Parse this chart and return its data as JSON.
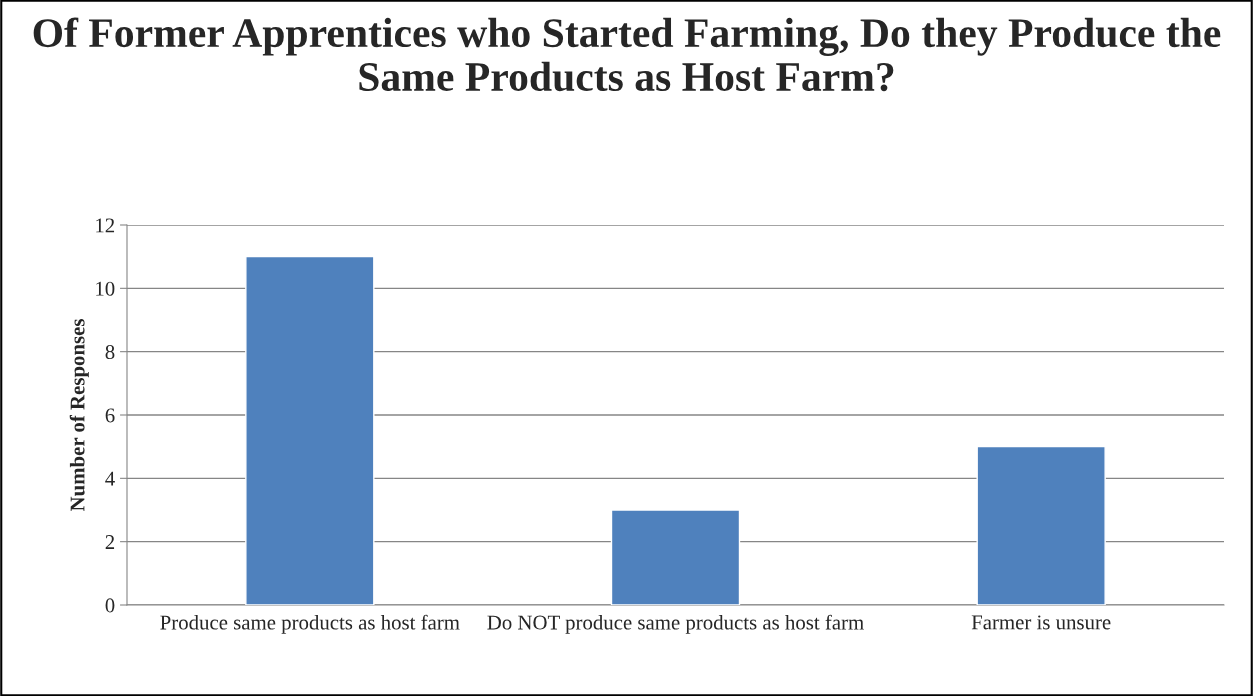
{
  "chart_data": {
    "type": "bar",
    "title": "Of Former Apprentices who Started Farming, Do they Produce the Same Products as Host Farm?",
    "ylabel": "Number of Responses",
    "categories": [
      "Produce same products as host farm",
      "Do NOT produce same products as host farm",
      "Farmer is unsure"
    ],
    "values": [
      11,
      3,
      5
    ],
    "color": "#4f81bd",
    "ylim": [
      0,
      12
    ],
    "yticks": [
      0,
      2,
      4,
      6,
      8,
      10,
      12
    ],
    "grid": "y"
  }
}
